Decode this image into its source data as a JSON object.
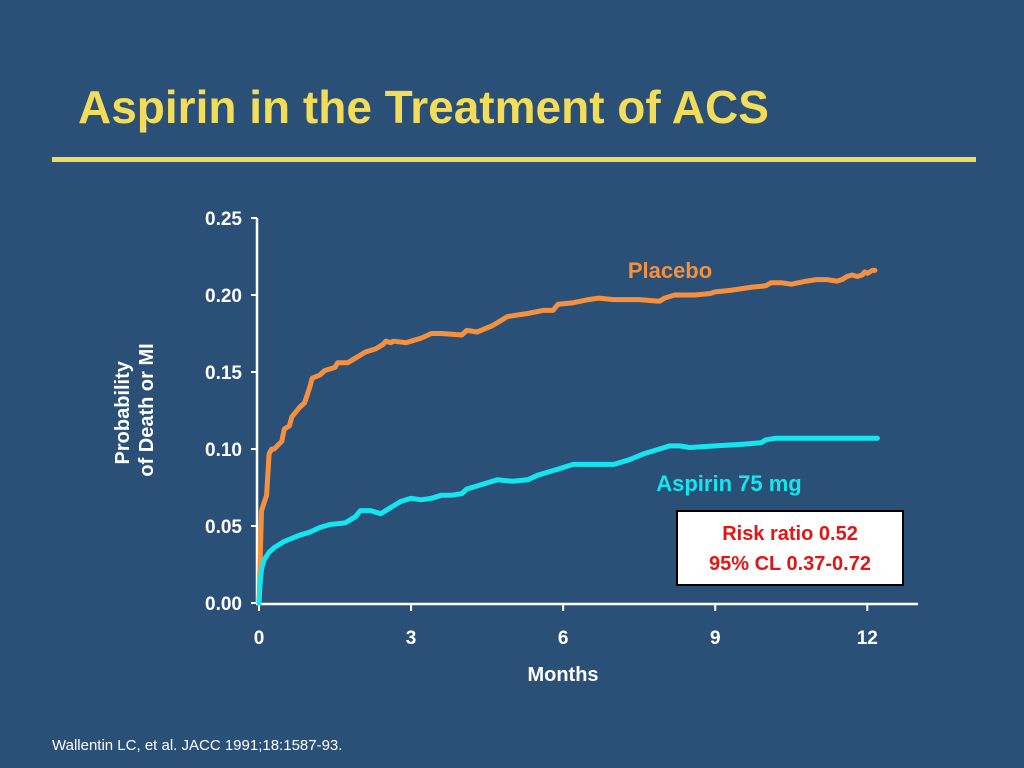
{
  "slide": {
    "title": "Aspirin in the Treatment of ACS",
    "footnote": "Wallentin LC, et al. JACC 1991;18:1587-93."
  },
  "stat_box": {
    "line1": "Risk ratio 0.52",
    "line2": "95% CL 0.37-0.72"
  },
  "colors": {
    "background": "#2a5078",
    "title": "#f2dc5a",
    "placebo": "#f5913e",
    "aspirin": "#14e6f0",
    "stat_text": "#e01616"
  },
  "chart_data": {
    "type": "line",
    "title": "",
    "xlabel": "Months",
    "ylabel_lines": [
      "Probability",
      "of Death or MI"
    ],
    "xlim": [
      0,
      13
    ],
    "ylim": [
      0,
      0.25
    ],
    "x_ticks": [
      0,
      3,
      6,
      9,
      12
    ],
    "x_tick_labels": [
      "0",
      "3",
      "6",
      "9",
      "12"
    ],
    "y_ticks": [
      0,
      0.05,
      0.1,
      0.15,
      0.2,
      0.25
    ],
    "y_tick_labels": [
      "0.00",
      "0.05",
      "0.10",
      "0.15",
      "0.20",
      "0.25"
    ],
    "grid": false,
    "legend": "inline labels",
    "series": [
      {
        "name": "Placebo",
        "color": "#f5913e",
        "x": [
          0,
          0.05,
          0.1,
          0.15,
          0.2,
          0.25,
          0.3,
          0.45,
          0.5,
          0.55,
          0.6,
          0.65,
          0.8,
          0.9,
          1.0,
          1.05,
          1.2,
          1.3,
          1.5,
          1.55,
          1.75,
          1.95,
          2.1,
          2.3,
          2.45,
          2.5,
          2.6,
          2.65,
          2.9,
          3.0,
          3.2,
          3.4,
          3.6,
          4.0,
          4.1,
          4.3,
          4.6,
          4.7,
          4.9,
          5.1,
          5.3,
          5.6,
          5.8,
          5.9,
          6.2,
          6.5,
          6.7,
          7.0,
          7.5,
          7.9,
          8.0,
          8.2,
          8.6,
          8.9,
          9.0,
          9.3,
          9.7,
          10.0,
          10.1,
          10.3,
          10.5,
          10.8,
          11.0,
          11.2,
          11.4,
          11.5,
          11.6,
          11.7,
          11.8,
          11.9,
          11.95,
          12.0,
          12.1,
          12.15
        ],
        "values": [
          0.0,
          0.06,
          0.065,
          0.07,
          0.097,
          0.1,
          0.1,
          0.105,
          0.113,
          0.114,
          0.115,
          0.121,
          0.127,
          0.13,
          0.14,
          0.146,
          0.148,
          0.151,
          0.153,
          0.156,
          0.156,
          0.16,
          0.163,
          0.165,
          0.168,
          0.17,
          0.169,
          0.17,
          0.169,
          0.17,
          0.172,
          0.175,
          0.175,
          0.174,
          0.177,
          0.176,
          0.18,
          0.182,
          0.186,
          0.187,
          0.188,
          0.19,
          0.19,
          0.194,
          0.195,
          0.197,
          0.198,
          0.197,
          0.197,
          0.196,
          0.198,
          0.2,
          0.2,
          0.201,
          0.202,
          0.203,
          0.205,
          0.206,
          0.208,
          0.208,
          0.207,
          0.209,
          0.21,
          0.21,
          0.209,
          0.21,
          0.212,
          0.213,
          0.212,
          0.213,
          0.215,
          0.214,
          0.216,
          0.216
        ]
      },
      {
        "name": "Aspirin 75 mg",
        "color": "#14e6f0",
        "x": [
          0,
          0.02,
          0.05,
          0.1,
          0.2,
          0.3,
          0.5,
          0.8,
          1.0,
          1.2,
          1.4,
          1.7,
          1.9,
          2.0,
          2.2,
          2.4,
          2.6,
          2.8,
          3.0,
          3.2,
          3.4,
          3.6,
          3.8,
          4.0,
          4.1,
          4.3,
          4.5,
          4.7,
          5.0,
          5.3,
          5.5,
          5.8,
          6.0,
          6.2,
          6.5,
          7.0,
          7.3,
          7.6,
          7.9,
          8.1,
          8.3,
          8.5,
          9.0,
          9.5,
          9.9,
          10.0,
          10.2,
          10.5,
          11.0,
          11.5,
          12.2
        ],
        "values": [
          0.0,
          0.012,
          0.022,
          0.028,
          0.033,
          0.036,
          0.04,
          0.044,
          0.046,
          0.049,
          0.051,
          0.052,
          0.056,
          0.06,
          0.06,
          0.058,
          0.062,
          0.066,
          0.068,
          0.067,
          0.068,
          0.07,
          0.07,
          0.071,
          0.074,
          0.076,
          0.078,
          0.08,
          0.079,
          0.08,
          0.083,
          0.086,
          0.088,
          0.09,
          0.09,
          0.09,
          0.093,
          0.097,
          0.1,
          0.102,
          0.102,
          0.101,
          0.102,
          0.103,
          0.104,
          0.106,
          0.107,
          0.107,
          0.107,
          0.107,
          0.107
        ]
      }
    ]
  }
}
